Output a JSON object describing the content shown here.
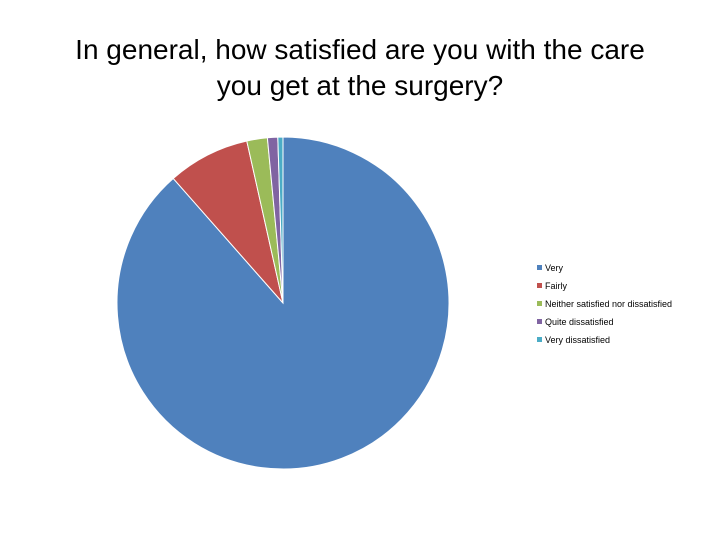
{
  "title": {
    "line1": "In general, how satisfied are you with the care",
    "line2": "you get at the surgery?"
  },
  "chart_data": {
    "type": "pie",
    "title": "In general, how satisfied are you with the care you get at the surgery?",
    "start_angle_deg": 0,
    "direction": "clockwise",
    "legend_position": "right",
    "slices": [
      {
        "label": "Very",
        "value": 88.5,
        "color": "#4F81BD"
      },
      {
        "label": "Fairly",
        "value": 8.0,
        "color": "#C0504D"
      },
      {
        "label": "Neither satisfied nor dissatisfied",
        "value": 2.0,
        "color": "#9BBB59"
      },
      {
        "label": "Quite dissatisfied",
        "value": 1.0,
        "color": "#8064A2"
      },
      {
        "label": "Very dissatisfied",
        "value": 0.5,
        "color": "#4BACC6"
      }
    ]
  }
}
